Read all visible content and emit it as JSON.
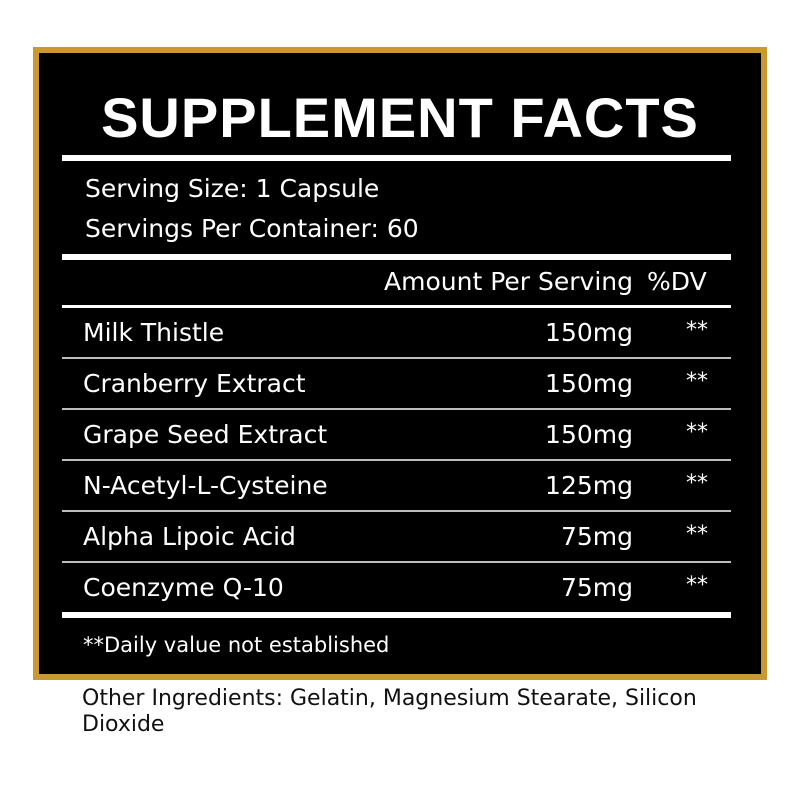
{
  "title": "SUPPLEMENT FACTS",
  "serving_size": "Serving Size: 1 Capsule",
  "servings_per_container": "Servings Per Container: 60",
  "header": {
    "amount": "Amount Per Serving",
    "dv": "%DV"
  },
  "rows": [
    {
      "name": "Milk Thistle",
      "amount": "150mg",
      "dv": "**"
    },
    {
      "name": "Cranberry Extract",
      "amount": "150mg",
      "dv": "**"
    },
    {
      "name": "Grape Seed Extract",
      "amount": "150mg",
      "dv": "**"
    },
    {
      "name": "N-Acetyl-L-Cysteine",
      "amount": "125mg",
      "dv": "**"
    },
    {
      "name": "Alpha Lipoic Acid",
      "amount": "75mg",
      "dv": "**"
    },
    {
      "name": "Coenzyme Q-10",
      "amount": "75mg",
      "dv": "**"
    }
  ],
  "footnote": "**Daily value not established",
  "other_ingredients": "Other Ingredients: Gelatin, Magnesium Stearate, Silicon Dioxide",
  "colors": {
    "border": "#c9992f",
    "panel": "#000000",
    "text": "#ffffff"
  }
}
